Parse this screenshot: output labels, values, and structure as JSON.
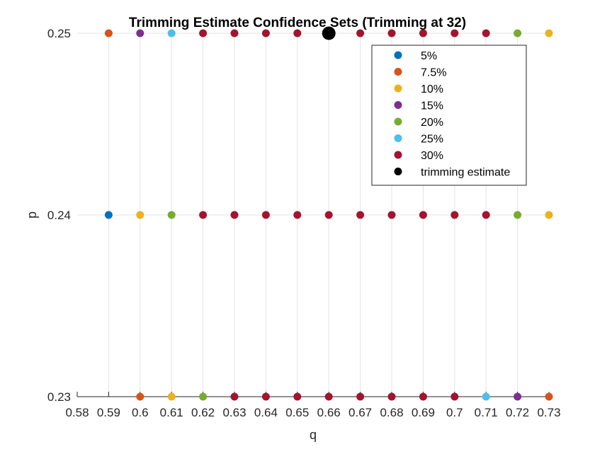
{
  "chart_data": {
    "type": "scatter",
    "title": "Trimming Estimate Confidence Sets (Trimming at 32)",
    "xlabel": "q",
    "ylabel": "p",
    "xlim": [
      0.58,
      0.73
    ],
    "ylim": [
      0.23,
      0.25
    ],
    "x_ticks": [
      "0.58",
      "0.59",
      "0.6",
      "0.61",
      "0.62",
      "0.63",
      "0.64",
      "0.65",
      "0.66",
      "0.67",
      "0.68",
      "0.69",
      "0.7",
      "0.71",
      "0.72",
      "0.73"
    ],
    "y_ticks": [
      "0.23",
      "0.24",
      "0.25"
    ],
    "grid": "vertical",
    "legend_position": "top-right",
    "series": [
      {
        "name": "5%",
        "color": "#0072BD",
        "points": [
          [
            0.59,
            0.24
          ]
        ]
      },
      {
        "name": "7.5%",
        "color": "#D95319",
        "points": [
          [
            0.59,
            0.25
          ],
          [
            0.6,
            0.23
          ],
          [
            0.73,
            0.23
          ]
        ]
      },
      {
        "name": "10%",
        "color": "#EDB120",
        "points": [
          [
            0.73,
            0.25
          ],
          [
            0.6,
            0.24
          ],
          [
            0.73,
            0.24
          ],
          [
            0.61,
            0.23
          ]
        ]
      },
      {
        "name": "15%",
        "color": "#7E2F8E",
        "points": [
          [
            0.6,
            0.25
          ],
          [
            0.72,
            0.23
          ]
        ]
      },
      {
        "name": "20%",
        "color": "#77AC30",
        "points": [
          [
            0.72,
            0.25
          ],
          [
            0.61,
            0.24
          ],
          [
            0.72,
            0.24
          ],
          [
            0.62,
            0.23
          ]
        ]
      },
      {
        "name": "25%",
        "color": "#4DBEEE",
        "points": [
          [
            0.61,
            0.25
          ],
          [
            0.71,
            0.23
          ]
        ]
      },
      {
        "name": "30%",
        "color": "#A2142F",
        "points": [
          [
            0.62,
            0.25
          ],
          [
            0.63,
            0.25
          ],
          [
            0.64,
            0.25
          ],
          [
            0.65,
            0.25
          ],
          [
            0.67,
            0.25
          ],
          [
            0.68,
            0.25
          ],
          [
            0.69,
            0.25
          ],
          [
            0.7,
            0.25
          ],
          [
            0.71,
            0.25
          ],
          [
            0.62,
            0.24
          ],
          [
            0.63,
            0.24
          ],
          [
            0.64,
            0.24
          ],
          [
            0.65,
            0.24
          ],
          [
            0.66,
            0.24
          ],
          [
            0.67,
            0.24
          ],
          [
            0.68,
            0.24
          ],
          [
            0.69,
            0.24
          ],
          [
            0.7,
            0.24
          ],
          [
            0.71,
            0.24
          ],
          [
            0.63,
            0.23
          ],
          [
            0.64,
            0.23
          ],
          [
            0.65,
            0.23
          ],
          [
            0.66,
            0.23
          ],
          [
            0.67,
            0.23
          ],
          [
            0.68,
            0.23
          ],
          [
            0.69,
            0.23
          ],
          [
            0.7,
            0.23
          ]
        ]
      },
      {
        "name": "trimming estimate",
        "color": "#000000",
        "marker": "large",
        "points": [
          [
            0.66,
            0.25
          ]
        ]
      }
    ]
  }
}
